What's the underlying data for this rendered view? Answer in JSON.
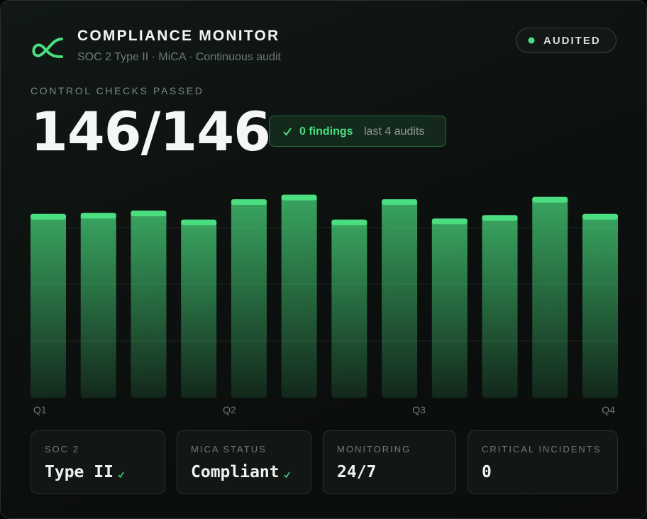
{
  "header": {
    "title": "COMPLIANCE MONITOR",
    "subtitle": "SOC 2 Type II · MiCA · Continuous audit",
    "badge": "AUDITED"
  },
  "summary": {
    "label": "CONTROL CHECKS PASSED",
    "value": "146/146",
    "findings": "0 findings",
    "findings_note": "last 4 audits"
  },
  "chart_data": {
    "type": "bar",
    "values": [
      81,
      81.5,
      82.5,
      78.5,
      87.5,
      89.5,
      78.5,
      87.5,
      79,
      80.5,
      88.5,
      81
    ],
    "color": "#4ade80",
    "ylim": [
      0,
      100
    ],
    "yticks": [
      25,
      50,
      75
    ],
    "grid": true,
    "x_labels": [
      "Q1",
      "Q2",
      "Q3",
      "Q4"
    ]
  },
  "stats": [
    {
      "label": "SOC 2",
      "value": "Type II",
      "check": true
    },
    {
      "label": "MICA STATUS",
      "value": "Compliant",
      "check": true
    },
    {
      "label": "MONITORING",
      "value": "24/7",
      "check": false
    },
    {
      "label": "CRITICAL INCIDENTS",
      "value": "0",
      "check": false
    }
  ]
}
